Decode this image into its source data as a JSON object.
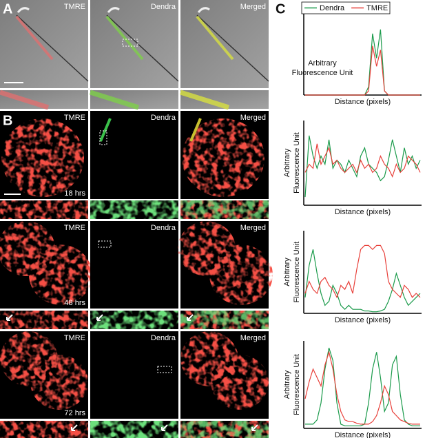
{
  "panel_a": {
    "label": "A",
    "captions": [
      "TMRE",
      "Dendra",
      "Merged"
    ]
  },
  "panel_b": {
    "label": "B",
    "captions": [
      "TMRE",
      "Dendra",
      "Merged"
    ],
    "times": [
      "18 hrs",
      "48 hrs",
      "72 hrs"
    ]
  },
  "panel_c": {
    "label": "C"
  },
  "chart_data": [
    {
      "type": "line",
      "x_label": "Distance (pixels)",
      "y_label": [
        "Arbitrary",
        "Fluorescence Unit"
      ],
      "ylim": [
        0,
        100
      ],
      "legend": true,
      "series": [
        {
          "name": "Dendra",
          "color": "#1a9a4a",
          "values": [
            0,
            0,
            0,
            0,
            0,
            0,
            0,
            0,
            0,
            0,
            0,
            0,
            0,
            0,
            0,
            0,
            10,
            75,
            45,
            80,
            5,
            0,
            0,
            0,
            0,
            0,
            0,
            0,
            0,
            0
          ]
        },
        {
          "name": "TMRE",
          "color": "#e8403a",
          "values": [
            0,
            0,
            0,
            0,
            0,
            0,
            0,
            0,
            0,
            0,
            0,
            0,
            0,
            0,
            0,
            0,
            5,
            60,
            35,
            55,
            5,
            0,
            0,
            0,
            0,
            0,
            0,
            0,
            0,
            0
          ]
        }
      ]
    },
    {
      "type": "line",
      "x_label": "Distance (pixels)",
      "y_label": [
        "Arbitrary",
        "Fluorescence Unit"
      ],
      "ylim": [
        0,
        100
      ],
      "series": [
        {
          "color": "#1a9a4a",
          "values": [
            10,
            85,
            60,
            45,
            60,
            50,
            80,
            45,
            55,
            50,
            40,
            55,
            45,
            35,
            60,
            70,
            50,
            45,
            40,
            30,
            35,
            55,
            80,
            60,
            40,
            70,
            50,
            60,
            45,
            55
          ]
        },
        {
          "color": "#e8403a",
          "values": [
            40,
            50,
            45,
            75,
            50,
            60,
            70,
            50,
            55,
            45,
            40,
            45,
            50,
            40,
            55,
            45,
            50,
            40,
            45,
            60,
            50,
            45,
            35,
            50,
            40,
            45,
            60,
            55,
            50,
            40
          ]
        }
      ]
    },
    {
      "type": "line",
      "x_label": "Distance (pixels)",
      "y_label": [
        "Arbitrary",
        "Fluorescence Unit"
      ],
      "ylim": [
        0,
        100
      ],
      "series": [
        {
          "color": "#1a9a4a",
          "values": [
            20,
            60,
            80,
            50,
            25,
            10,
            15,
            35,
            25,
            10,
            5,
            10,
            5,
            5,
            5,
            3,
            3,
            2,
            2,
            3,
            5,
            15,
            30,
            50,
            35,
            20,
            10,
            15,
            20,
            25
          ]
        },
        {
          "color": "#e8403a",
          "values": [
            25,
            40,
            30,
            25,
            40,
            45,
            35,
            30,
            20,
            35,
            30,
            40,
            25,
            55,
            80,
            85,
            85,
            80,
            85,
            85,
            75,
            40,
            30,
            25,
            20,
            35,
            30,
            20,
            25,
            20
          ]
        }
      ]
    },
    {
      "type": "line",
      "x_label": "Distance (pixels)",
      "y_label": [
        "Arbitrary",
        "Fluorescence Unit"
      ],
      "ylim": [
        0,
        100
      ],
      "series": [
        {
          "color": "#1a9a4a",
          "values": [
            5,
            5,
            5,
            10,
            30,
            70,
            95,
            80,
            30,
            5,
            3,
            3,
            3,
            3,
            3,
            5,
            30,
            70,
            90,
            60,
            20,
            30,
            75,
            85,
            40,
            10,
            5,
            3,
            3,
            3
          ]
        },
        {
          "color": "#e8403a",
          "values": [
            35,
            55,
            70,
            60,
            50,
            75,
            90,
            70,
            40,
            20,
            10,
            8,
            8,
            6,
            5,
            5,
            5,
            8,
            15,
            30,
            50,
            40,
            20,
            15,
            10,
            8,
            6,
            5,
            5,
            5
          ]
        }
      ]
    }
  ]
}
